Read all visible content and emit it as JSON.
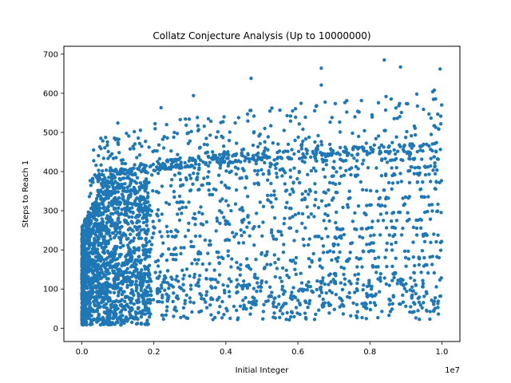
{
  "chart_data": {
    "type": "scatter",
    "title": "Collatz Conjecture Analysis (Up to 10000000)",
    "xlabel": "Initial Integer",
    "ylabel": "Steps to Reach 1",
    "x_offset_label": "1e7",
    "xlim": [
      -500000,
      10500000
    ],
    "ylim": [
      -34,
      720
    ],
    "x_ticks": [
      0,
      2000000,
      4000000,
      6000000,
      8000000,
      10000000
    ],
    "x_tick_labels": [
      "0.0",
      "0.2",
      "0.4",
      "0.6",
      "0.8",
      "1.0"
    ],
    "y_ticks": [
      0,
      100,
      200,
      300,
      400,
      500,
      600,
      700
    ],
    "y_tick_labels": [
      "0",
      "100",
      "200",
      "300",
      "400",
      "500",
      "600",
      "700"
    ],
    "grid": false,
    "marker_color": "#1f77b4",
    "x_range": [
      1,
      10000000
    ],
    "y_range": [
      0,
      685
    ],
    "highlighted_points": [
      {
        "x": 8400000,
        "y": 685
      },
      {
        "x": 8850000,
        "y": 667
      },
      {
        "x": 6650000,
        "y": 664
      },
      {
        "x": 9950000,
        "y": 662
      },
      {
        "x": 6650000,
        "y": 621
      },
      {
        "x": 4700000,
        "y": 638
      },
      {
        "x": 1000000,
        "y": 524
      },
      {
        "x": 3100000,
        "y": 594
      },
      {
        "x": 2200000,
        "y": 563
      }
    ]
  }
}
